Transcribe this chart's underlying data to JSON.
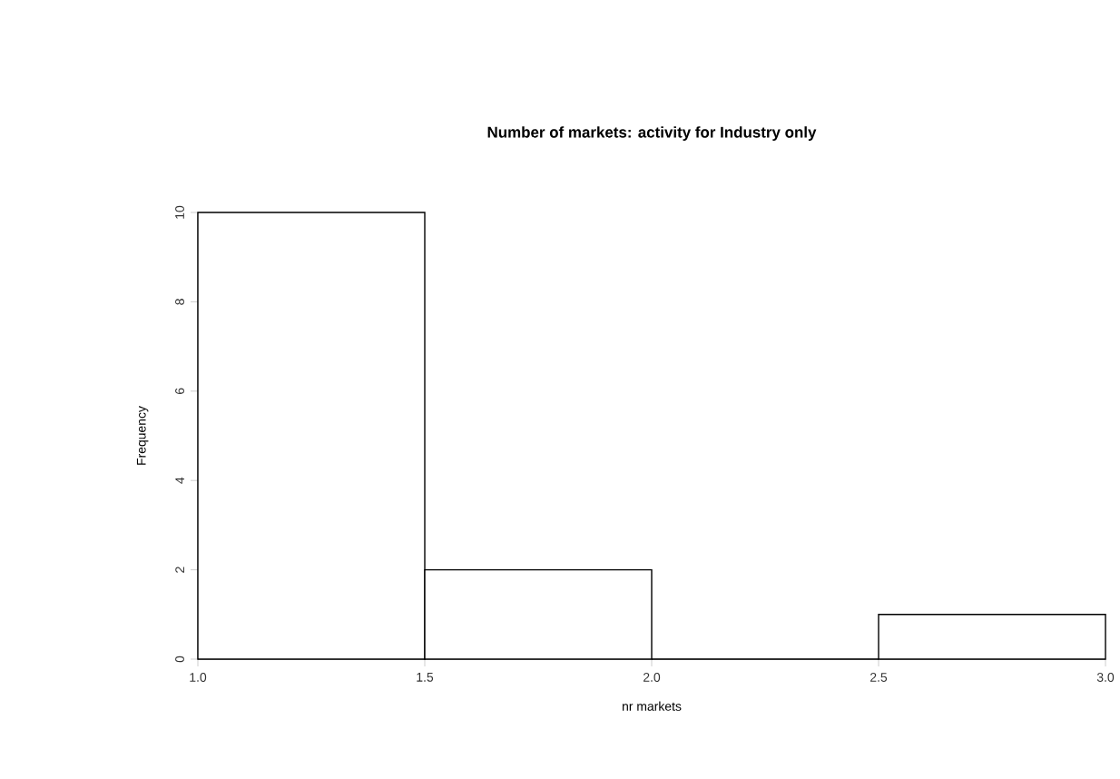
{
  "chart_data": {
    "type": "histogram",
    "title": "Number of markets: activity for Industry only",
    "xlabel": "nr markets",
    "ylabel": "Frequency",
    "bins": [
      1.0,
      1.5,
      2.0,
      2.5,
      3.0
    ],
    "values": [
      10,
      2,
      0,
      1
    ],
    "xlim": [
      1.0,
      3.0
    ],
    "ylim": [
      0,
      10
    ],
    "xticks": [
      {
        "value": 1.0,
        "label": "1.0"
      },
      {
        "value": 1.5,
        "label": "1.5"
      },
      {
        "value": 2.0,
        "label": "2.0"
      },
      {
        "value": 2.5,
        "label": "2.5"
      },
      {
        "value": 3.0,
        "label": "3.0"
      }
    ],
    "yticks": [
      0,
      2,
      4,
      6,
      8,
      10
    ]
  }
}
